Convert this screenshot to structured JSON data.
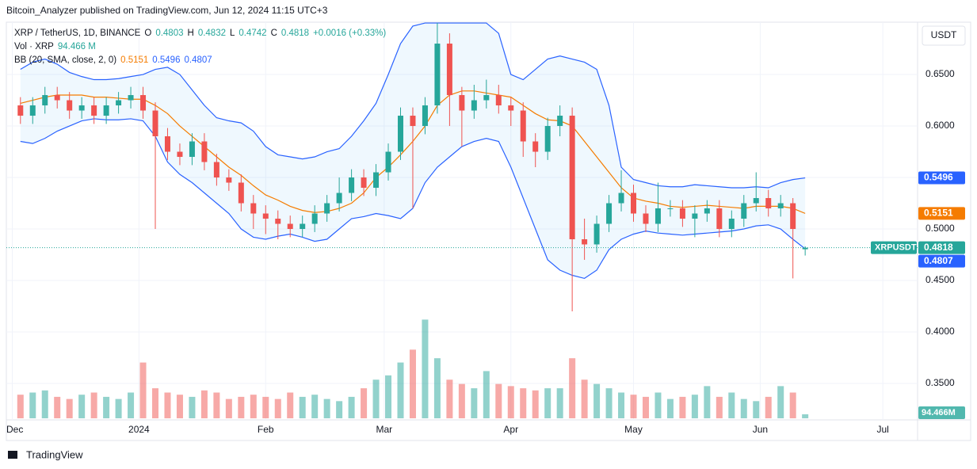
{
  "header": {
    "publisher": "Bitcoin_Analyzer published on TradingView.com, Jun 12, 2024 11:15 UTC+3"
  },
  "footer": {
    "brand": "TradingView"
  },
  "chart_data": {
    "type": "candlestick",
    "symbol": "XRP / TetherUS, 1D, BINANCE",
    "ohlc_labels": [
      "O",
      "H",
      "L",
      "C"
    ],
    "change_label": "+0.0016 (+0.33%)",
    "currency": "USDT",
    "ticker": "XRPUSDT",
    "x": [
      2,
      5,
      8,
      11,
      14,
      17,
      20,
      23,
      26,
      29,
      32,
      35,
      38,
      41,
      44,
      47,
      50,
      53,
      56,
      59,
      62,
      65,
      68,
      71,
      74,
      77,
      80,
      83,
      86,
      89,
      92,
      95,
      98,
      101,
      104,
      107,
      110,
      113,
      116,
      119,
      122,
      125,
      128,
      131,
      134,
      137,
      140,
      143,
      146,
      149,
      152,
      155,
      158,
      161,
      164,
      167,
      170,
      173,
      176,
      179,
      182,
      185,
      188,
      191,
      194
    ],
    "open": [
      0.62,
      0.61,
      0.62,
      0.63,
      0.625,
      0.615,
      0.62,
      0.61,
      0.62,
      0.625,
      0.63,
      0.615,
      0.59,
      0.575,
      0.57,
      0.585,
      0.565,
      0.55,
      0.545,
      0.525,
      0.515,
      0.51,
      0.505,
      0.5,
      0.505,
      0.515,
      0.525,
      0.535,
      0.55,
      0.54,
      0.555,
      0.575,
      0.61,
      0.6,
      0.62,
      0.68,
      0.63,
      0.615,
      0.625,
      0.63,
      0.62,
      0.615,
      0.585,
      0.575,
      0.6,
      0.61,
      0.49,
      0.485,
      0.505,
      0.525,
      0.535,
      0.515,
      0.505,
      0.52,
      0.52,
      0.51,
      0.515,
      0.52,
      0.5,
      0.51,
      0.525,
      0.53,
      0.52,
      0.525,
      0.4803
    ],
    "high": [
      0.628,
      0.628,
      0.638,
      0.638,
      0.633,
      0.628,
      0.628,
      0.628,
      0.633,
      0.638,
      0.638,
      0.623,
      0.598,
      0.583,
      0.593,
      0.593,
      0.573,
      0.558,
      0.553,
      0.533,
      0.523,
      0.518,
      0.513,
      0.513,
      0.523,
      0.533,
      0.55,
      0.558,
      0.558,
      0.563,
      0.583,
      0.618,
      0.618,
      0.628,
      0.7,
      0.69,
      0.638,
      0.64,
      0.645,
      0.64,
      0.628,
      0.623,
      0.593,
      0.608,
      0.62,
      0.618,
      0.51,
      0.513,
      0.533,
      0.557,
      0.543,
      0.523,
      0.545,
      0.528,
      0.528,
      0.523,
      0.528,
      0.528,
      0.518,
      0.533,
      0.555,
      0.538,
      0.533,
      0.53,
      0.4832
    ],
    "low": [
      0.602,
      0.602,
      0.612,
      0.617,
      0.607,
      0.607,
      0.602,
      0.602,
      0.612,
      0.617,
      0.607,
      0.5,
      0.567,
      0.562,
      0.562,
      0.557,
      0.542,
      0.537,
      0.517,
      0.5,
      0.495,
      0.49,
      0.492,
      0.492,
      0.497,
      0.507,
      0.517,
      0.527,
      0.532,
      0.532,
      0.547,
      0.567,
      0.52,
      0.592,
      0.612,
      0.6,
      0.58,
      0.607,
      0.617,
      0.612,
      0.6,
      0.57,
      0.56,
      0.567,
      0.59,
      0.42,
      0.47,
      0.477,
      0.497,
      0.517,
      0.507,
      0.497,
      0.497,
      0.512,
      0.502,
      0.492,
      0.507,
      0.492,
      0.492,
      0.502,
      0.517,
      0.512,
      0.512,
      0.452,
      0.4742
    ],
    "close": [
      0.61,
      0.62,
      0.63,
      0.625,
      0.615,
      0.62,
      0.61,
      0.62,
      0.625,
      0.63,
      0.615,
      0.59,
      0.575,
      0.57,
      0.585,
      0.565,
      0.55,
      0.545,
      0.525,
      0.515,
      0.51,
      0.505,
      0.5,
      0.505,
      0.515,
      0.525,
      0.535,
      0.55,
      0.54,
      0.555,
      0.575,
      0.61,
      0.6,
      0.62,
      0.68,
      0.63,
      0.615,
      0.625,
      0.63,
      0.62,
      0.615,
      0.585,
      0.575,
      0.6,
      0.61,
      0.49,
      0.485,
      0.505,
      0.525,
      0.535,
      0.515,
      0.505,
      0.52,
      0.52,
      0.51,
      0.515,
      0.52,
      0.5,
      0.51,
      0.525,
      0.53,
      0.52,
      0.525,
      0.5,
      0.4818
    ],
    "up_color": "#26a69a",
    "down_color": "#ef5350",
    "xlim": [
      -3,
      221.5
    ],
    "xticks": [
      {
        "value": 0,
        "label": "Dec"
      },
      {
        "value": 31,
        "label": "2024"
      },
      {
        "value": 62,
        "label": "Feb"
      },
      {
        "value": 91,
        "label": "Mar"
      },
      {
        "value": 122,
        "label": "Apr"
      },
      {
        "value": 152,
        "label": "May"
      },
      {
        "value": 183,
        "label": "Jun"
      },
      {
        "value": 213,
        "label": "Jul"
      }
    ],
    "ylim": [
      0.3146,
      0.7008
    ],
    "yticks": [
      {
        "value": 0.35,
        "label": "0.3500"
      },
      {
        "value": 0.4,
        "label": "0.4000"
      },
      {
        "value": 0.45,
        "label": "0.4500"
      },
      {
        "value": 0.5,
        "label": "0.5000"
      },
      {
        "value": 0.55,
        "label": "0.5500"
      },
      {
        "value": 0.6,
        "label": "0.6000"
      },
      {
        "value": 0.65,
        "label": "0.6500"
      }
    ],
    "grid": true,
    "volume": {
      "name": "Vol · XRP",
      "legend_label": "94.466 M",
      "axis_label": "94.466M",
      "ylim": [
        0,
        2400
      ],
      "values": [
        550,
        600,
        650,
        500,
        450,
        550,
        600,
        500,
        450,
        600,
        1300,
        700,
        600,
        550,
        500,
        650,
        600,
        450,
        500,
        550,
        500,
        450,
        600,
        500,
        550,
        450,
        400,
        500,
        700,
        900,
        1000,
        1300,
        1600,
        2300,
        1400,
        900,
        800,
        700,
        1100,
        800,
        750,
        700,
        650,
        700,
        700,
        1400,
        900,
        800,
        700,
        600,
        550,
        500,
        600,
        450,
        500,
        550,
        750,
        500,
        600,
        450,
        400,
        500,
        750,
        600,
        94.466
      ]
    },
    "bollinger": {
      "name": "BB (20, SMA, close, 2, 0)",
      "upper_color": "#2962ff",
      "middle_color": "#f57c00",
      "lower_color": "#2962ff",
      "upper": [
        0.655,
        0.662,
        0.665,
        0.66,
        0.652,
        0.648,
        0.645,
        0.645,
        0.646,
        0.648,
        0.65,
        0.655,
        0.657,
        0.65,
        0.635,
        0.62,
        0.608,
        0.605,
        0.603,
        0.595,
        0.58,
        0.572,
        0.57,
        0.568,
        0.57,
        0.575,
        0.578,
        0.59,
        0.605,
        0.622,
        0.65,
        0.68,
        0.697,
        0.7,
        0.7,
        0.7,
        0.7,
        0.7,
        0.7,
        0.69,
        0.65,
        0.645,
        0.655,
        0.665,
        0.668,
        0.665,
        0.662,
        0.655,
        0.62,
        0.56,
        0.548,
        0.545,
        0.542,
        0.541,
        0.541,
        0.543,
        0.542,
        0.541,
        0.54,
        0.54,
        0.541,
        0.54,
        0.545,
        0.548,
        0.5496
      ],
      "middle": [
        0.622,
        0.625,
        0.628,
        0.63,
        0.63,
        0.63,
        0.628,
        0.628,
        0.627,
        0.626,
        0.626,
        0.62,
        0.612,
        0.6,
        0.59,
        0.58,
        0.57,
        0.56,
        0.552,
        0.542,
        0.533,
        0.528,
        0.522,
        0.518,
        0.516,
        0.517,
        0.52,
        0.525,
        0.535,
        0.55,
        0.56,
        0.572,
        0.585,
        0.6,
        0.62,
        0.63,
        0.634,
        0.634,
        0.632,
        0.63,
        0.628,
        0.62,
        0.612,
        0.606,
        0.605,
        0.6,
        0.585,
        0.57,
        0.555,
        0.54,
        0.53,
        0.527,
        0.525,
        0.522,
        0.521,
        0.522,
        0.523,
        0.522,
        0.521,
        0.52,
        0.522,
        0.522,
        0.522,
        0.52,
        0.5151
      ],
      "lower": [
        0.585,
        0.583,
        0.588,
        0.595,
        0.6,
        0.605,
        0.607,
        0.606,
        0.606,
        0.607,
        0.605,
        0.59,
        0.565,
        0.553,
        0.545,
        0.535,
        0.525,
        0.515,
        0.5,
        0.492,
        0.49,
        0.493,
        0.495,
        0.492,
        0.488,
        0.49,
        0.5,
        0.51,
        0.512,
        0.515,
        0.513,
        0.51,
        0.52,
        0.545,
        0.56,
        0.57,
        0.58,
        0.585,
        0.588,
        0.585,
        0.56,
        0.53,
        0.5,
        0.47,
        0.46,
        0.455,
        0.452,
        0.46,
        0.48,
        0.49,
        0.495,
        0.498,
        0.496,
        0.495,
        0.494,
        0.495,
        0.496,
        0.497,
        0.498,
        0.5,
        0.503,
        0.504,
        0.5,
        0.49,
        0.4807
      ]
    }
  }
}
